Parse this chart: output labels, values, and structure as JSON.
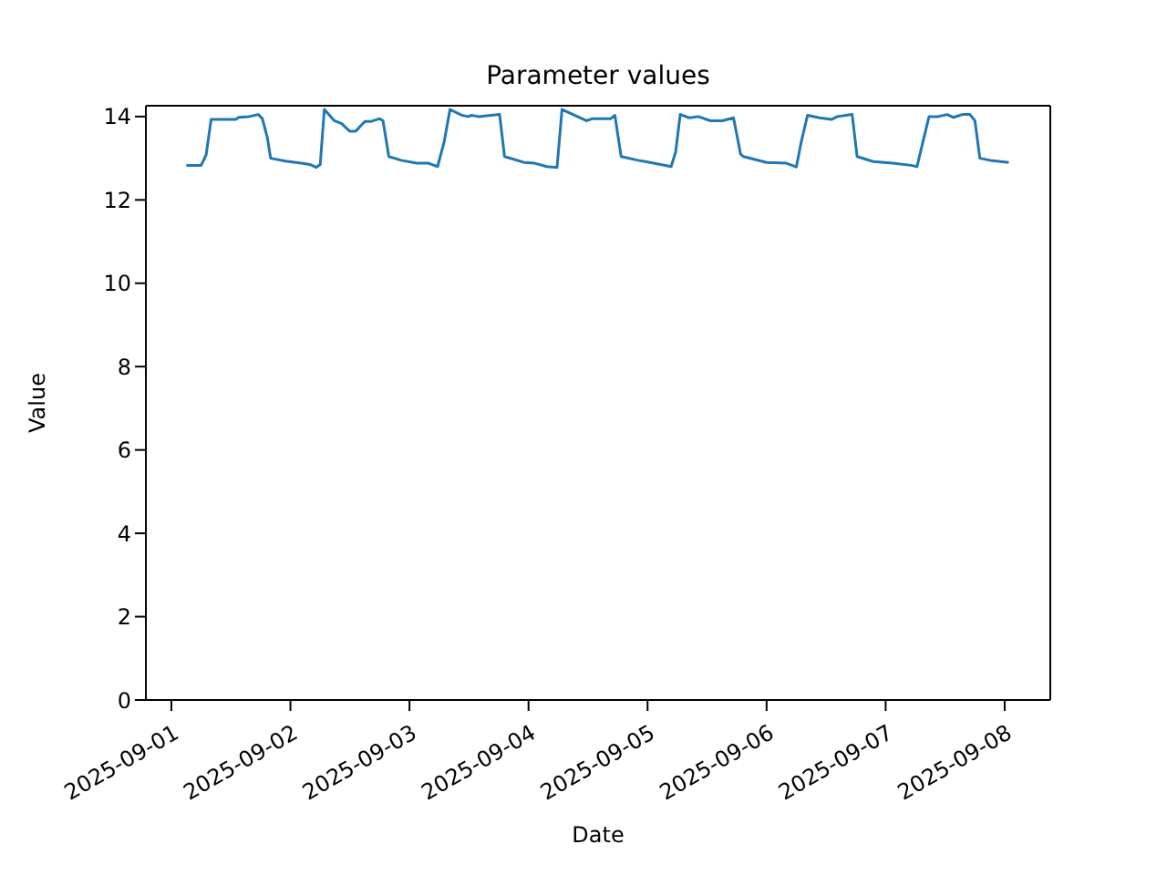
{
  "chart_data": {
    "type": "line",
    "title": "Parameter values",
    "xlabel": "Date",
    "ylabel": "Value",
    "x": [
      "2025-09-01T03:00",
      "2025-09-01T06:00",
      "2025-09-01T07:00",
      "2025-09-01T08:00",
      "2025-09-01T13:00",
      "2025-09-01T13:30",
      "2025-09-01T15:40",
      "2025-09-01T17:30",
      "2025-09-01T18:20",
      "2025-09-01T19:20",
      "2025-09-01T20:00",
      "2025-09-01T23:00",
      "2025-09-02T02:10",
      "2025-09-02T03:55",
      "2025-09-02T05:10",
      "2025-09-02T06:00",
      "2025-09-02T06:50",
      "2025-09-02T08:50",
      "2025-09-02T10:20",
      "2025-09-02T11:55",
      "2025-09-02T13:10",
      "2025-09-02T14:20",
      "2025-09-02T15:00",
      "2025-09-02T16:10",
      "2025-09-02T18:00",
      "2025-09-02T18:40",
      "2025-09-02T19:50",
      "2025-09-02T22:20",
      "2025-09-03T01:25",
      "2025-09-03T03:50",
      "2025-09-03T05:40",
      "2025-09-03T07:00",
      "2025-09-03T08:10",
      "2025-09-03T10:35",
      "2025-09-03T11:50",
      "2025-09-03T12:30",
      "2025-09-03T13:55",
      "2025-09-03T18:10",
      "2025-09-03T19:10",
      "2025-09-03T23:05",
      "2025-09-04T01:15",
      "2025-09-04T03:40",
      "2025-09-04T05:45",
      "2025-09-04T06:45",
      "2025-09-04T11:40",
      "2025-09-04T12:55",
      "2025-09-04T16:35",
      "2025-09-04T17:25",
      "2025-09-04T18:40",
      "2025-09-04T22:05",
      "2025-09-05T00:30",
      "2025-09-05T04:45",
      "2025-09-05T05:40",
      "2025-09-05T06:35",
      "2025-09-05T08:25",
      "2025-09-05T10:15",
      "2025-09-05T12:40",
      "2025-09-05T15:05",
      "2025-09-05T17:20",
      "2025-09-05T18:45",
      "2025-09-05T19:20",
      "2025-09-06T00:00",
      "2025-09-06T04:00",
      "2025-09-06T06:00",
      "2025-09-06T07:00",
      "2025-09-06T08:15",
      "2025-09-06T10:40",
      "2025-09-06T13:05",
      "2025-09-06T14:15",
      "2025-09-06T17:15",
      "2025-09-06T18:15",
      "2025-09-06T21:30",
      "2025-09-07T01:25",
      "2025-09-07T05:05",
      "2025-09-07T06:20",
      "2025-09-07T07:20",
      "2025-09-07T08:45",
      "2025-09-07T10:35",
      "2025-09-07T12:25",
      "2025-09-07T13:40",
      "2025-09-07T15:30",
      "2025-09-07T17:00",
      "2025-09-07T18:00",
      "2025-09-07T19:00",
      "2025-09-07T21:05",
      "2025-09-08T00:50"
    ],
    "series": [
      {
        "color": "#1f77b4",
        "values": [
          12.83,
          12.83,
          13.08,
          13.93,
          13.93,
          13.98,
          14.0,
          14.05,
          13.95,
          13.5,
          13.0,
          12.93,
          12.88,
          12.85,
          12.78,
          12.85,
          14.17,
          13.9,
          13.83,
          13.65,
          13.65,
          13.8,
          13.88,
          13.88,
          13.95,
          13.9,
          13.04,
          12.95,
          12.88,
          12.88,
          12.8,
          13.4,
          14.17,
          14.03,
          14.0,
          14.03,
          14.0,
          14.05,
          13.04,
          12.9,
          12.88,
          12.8,
          12.78,
          14.17,
          13.9,
          13.95,
          13.95,
          14.03,
          13.04,
          12.95,
          12.9,
          12.8,
          13.15,
          14.05,
          13.97,
          14.0,
          13.9,
          13.9,
          13.97,
          13.1,
          13.04,
          12.9,
          12.88,
          12.79,
          13.4,
          14.03,
          13.97,
          13.93,
          14.0,
          14.05,
          13.04,
          12.92,
          12.88,
          12.83,
          12.8,
          13.3,
          14.0,
          14.0,
          14.05,
          13.98,
          14.05,
          14.05,
          13.9,
          13.0,
          12.95,
          12.9
        ]
      }
    ],
    "xlim": [
      "2025-08-31T18:51",
      "2025-09-08T09:12"
    ],
    "xticks": [
      "2025-09-01",
      "2025-09-02",
      "2025-09-03",
      "2025-09-04",
      "2025-09-05",
      "2025-09-06",
      "2025-09-07",
      "2025-09-08"
    ],
    "ylim": [
      0,
      14.26
    ],
    "yticks": [
      0,
      2,
      4,
      6,
      8,
      10,
      12,
      14
    ],
    "grid": false,
    "legend": false,
    "marker": "none",
    "line_style": "solid"
  }
}
